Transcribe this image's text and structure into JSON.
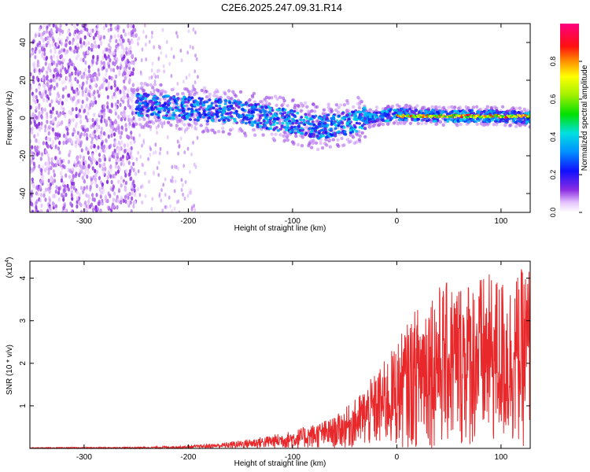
{
  "figure_title": "C2E6.2025.247.09.31.R14",
  "colors": {
    "snr_line": "#e8282a",
    "axis": "#000000",
    "background": "#ffffff"
  },
  "chart_data": [
    {
      "type": "heatmap",
      "title": "C2E6.2025.247.09.31.R14",
      "xlabel": "Height of straight line (km)",
      "ylabel": "Frequency (Hz)",
      "xlim": [
        -352,
        128
      ],
      "ylim": [
        -50,
        50
      ],
      "xticks": [
        -300,
        -200,
        -100,
        0,
        100
      ],
      "yticks": [
        -40,
        -20,
        0,
        20,
        40
      ],
      "colorbar": {
        "label": "Normalized spectral amplitude",
        "range": [
          0.0,
          1.0
        ],
        "ticks": [
          0.0,
          0.2,
          0.4,
          0.6,
          0.8
        ],
        "tick_labels": [
          "0.0",
          "0.2",
          "0.4",
          "0.6",
          "0.8"
        ],
        "colormap": "rainbow (white-violet-blue-cyan-green-yellow-orange-red-magenta)"
      },
      "regions": [
        {
          "name": "noise",
          "x_range": [
            -352,
            -250
          ],
          "freq_range": [
            -50,
            50
          ],
          "amplitude": 0.1
        },
        {
          "name": "sparse noise",
          "x_range": [
            -250,
            -190
          ],
          "freq_range": [
            -50,
            50
          ],
          "amplitude": 0.05
        },
        {
          "name": "signal band",
          "x_range": [
            -250,
            128
          ],
          "amplitude": 0.3,
          "center_freq": [
            {
              "x": -250,
              "f": 7
            },
            {
              "x": -200,
              "f": 5
            },
            {
              "x": -150,
              "f": 3
            },
            {
              "x": -100,
              "f": -2
            },
            {
              "x": -75,
              "f": -5
            },
            {
              "x": -50,
              "f": -3
            },
            {
              "x": -30,
              "f": 0
            },
            {
              "x": 0,
              "f": 2
            },
            {
              "x": 50,
              "f": 1
            },
            {
              "x": 100,
              "f": 1
            },
            {
              "x": 128,
              "f": 0
            }
          ]
        },
        {
          "name": "strong carrier",
          "x_range": [
            0,
            128
          ],
          "center_freq_hz": 1,
          "amplitude": 0.9
        }
      ]
    },
    {
      "type": "line",
      "xlabel": "Height of straight line (km)",
      "ylabel": "SNR (10 * v/v)",
      "y_multiplier_label": "(x10",
      "y_multiplier_exponent": "4",
      "y_multiplier_suffix": ")",
      "xlim": [
        -352,
        128
      ],
      "ylim": [
        0,
        4.4
      ],
      "xticks": [
        -300,
        -200,
        -100,
        0,
        100
      ],
      "yticks": [
        1,
        2,
        3,
        4
      ],
      "series": [
        {
          "name": "SNR",
          "color": "#e8282a",
          "envelope": [
            {
              "x": -352,
              "y": 0.02
            },
            {
              "x": -250,
              "y": 0.03
            },
            {
              "x": -200,
              "y": 0.06
            },
            {
              "x": -170,
              "y": 0.12
            },
            {
              "x": -150,
              "y": 0.18
            },
            {
              "x": -120,
              "y": 0.3
            },
            {
              "x": -100,
              "y": 0.4
            },
            {
              "x": -80,
              "y": 0.55
            },
            {
              "x": -60,
              "y": 0.7
            },
            {
              "x": -40,
              "y": 1.1
            },
            {
              "x": -20,
              "y": 1.7
            },
            {
              "x": -5,
              "y": 2.2
            },
            {
              "x": 10,
              "y": 2.8
            },
            {
              "x": 30,
              "y": 3.6
            },
            {
              "x": 60,
              "y": 3.8
            },
            {
              "x": 90,
              "y": 3.9
            },
            {
              "x": 110,
              "y": 3.8
            },
            {
              "x": 128,
              "y": 4.2
            }
          ]
        }
      ]
    }
  ]
}
